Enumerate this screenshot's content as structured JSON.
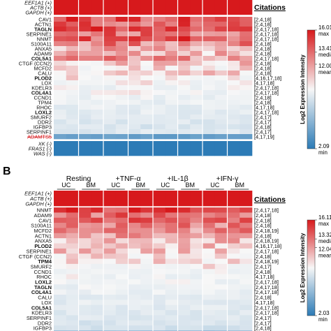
{
  "chart_data": [
    {
      "type": "heatmap",
      "panel_label": "",
      "column_groups": [],
      "column_subgroups": [],
      "column_count": 16,
      "control_rows": {
        "top": [
          {
            "label": "EEF1A1 (+)",
            "level": "high"
          },
          {
            "label": "ACTB (+)",
            "level": "high"
          },
          {
            "label": "GAPDH (+)",
            "level": "high"
          }
        ],
        "bottom": [
          {
            "label": "XK (-)",
            "level": "low"
          },
          {
            "label": "FRAS1 (-)",
            "level": "low"
          },
          {
            "label": "WAS (-)",
            "level": "low"
          }
        ]
      },
      "rows": [
        {
          "gene": "CAV1",
          "bold": false,
          "struck": false,
          "citation": "[2,4,18]",
          "value": 14.9
        },
        {
          "gene": "ACTN1",
          "bold": false,
          "struck": false,
          "citation": "[2,4,18]",
          "value": 14.7
        },
        {
          "gene": "TAGLN",
          "bold": true,
          "struck": false,
          "citation": "[2,4,17,18]",
          "value": 14.9
        },
        {
          "gene": "SERPINE1",
          "bold": false,
          "struck": false,
          "citation": "[2,4,17,18]",
          "value": 14.6
        },
        {
          "gene": "NNMT",
          "bold": false,
          "struck": false,
          "citation": "[2,4,17,18]",
          "value": 14.8
        },
        {
          "gene": "S100A11",
          "bold": false,
          "struck": false,
          "citation": "[2,4,18]",
          "value": 14.4
        },
        {
          "gene": "ANXA5",
          "bold": false,
          "struck": false,
          "citation": "[2,4,18]",
          "value": 14.1
        },
        {
          "gene": "ADAM9",
          "bold": false,
          "struck": false,
          "citation": "[2,4,18]",
          "value": 13.9
        },
        {
          "gene": "COL5A1",
          "bold": true,
          "struck": false,
          "citation": "[2,4,17,18]",
          "value": 14.3
        },
        {
          "gene": "CTGF (CCN2)",
          "bold": false,
          "struck": false,
          "citation": "[2,4,18]",
          "value": 13.8
        },
        {
          "gene": "MCFD2",
          "bold": false,
          "struck": false,
          "citation": "[2,4,18]",
          "value": 13.5
        },
        {
          "gene": "CALU",
          "bold": false,
          "struck": false,
          "citation": "[2,4,18]",
          "value": 13.6
        },
        {
          "gene": "PLOD2",
          "bold": true,
          "struck": false,
          "citation": "[4,16,17,18]",
          "value": 13.4
        },
        {
          "gene": "LOX",
          "bold": false,
          "struck": false,
          "citation": "[4,17,18]",
          "value": 13.2
        },
        {
          "gene": "KDELR3",
          "bold": false,
          "struck": false,
          "citation": "[2,4,17,18]",
          "value": 13.0
        },
        {
          "gene": "COL4A1",
          "bold": true,
          "struck": false,
          "citation": "[2,4,17,18]",
          "value": 13.1
        },
        {
          "gene": "CCND1",
          "bold": false,
          "struck": false,
          "citation": "[2,4,18]",
          "value": 12.9
        },
        {
          "gene": "TPM4",
          "bold": false,
          "struck": false,
          "citation": "[2,4,18]",
          "value": 12.8
        },
        {
          "gene": "RHOC",
          "bold": false,
          "struck": false,
          "citation": "[4,17,18]",
          "value": 12.6
        },
        {
          "gene": "LOXL2",
          "bold": true,
          "struck": false,
          "citation": "[2,4,17,18]",
          "value": 12.5
        },
        {
          "gene": "SMURF2",
          "bold": false,
          "struck": false,
          "citation": "[2,4,17]",
          "value": 12.3
        },
        {
          "gene": "DDR2",
          "bold": false,
          "struck": false,
          "citation": "[2,4,17]",
          "value": 12.1
        },
        {
          "gene": "IGFBP3",
          "bold": false,
          "struck": false,
          "citation": "[2,4,18]",
          "value": 11.9
        },
        {
          "gene": "SERPINF1",
          "bold": false,
          "struck": false,
          "citation": "[2,4,17]",
          "value": 12.2
        },
        {
          "gene": "ADAMTS5",
          "bold": false,
          "struck": true,
          "citation": "[4,17,19]",
          "value": 6.0
        }
      ],
      "citations_header": "Citations",
      "colorbar": {
        "title": "Log2 Expression Intensity",
        "max": 16.01,
        "max_label": "max",
        "median": 13.41,
        "median_label": "median",
        "mean": 12.0,
        "mean_label": "mean",
        "min": 2.09,
        "min_label": "min",
        "colors": {
          "high": "#d7191c",
          "mid": "#f7f7f7",
          "low": "#2c7bb6"
        }
      }
    },
    {
      "type": "heatmap",
      "panel_label": "B",
      "column_groups": [
        "Resting",
        "+TNF-α",
        "+IL-1β",
        "+IFN-γ"
      ],
      "column_subgroups": [
        "UC",
        "BM",
        "UC",
        "BM",
        "UC",
        "BM",
        "UC",
        "BM"
      ],
      "column_count": 16,
      "control_rows": {
        "top": [
          {
            "label": "EEF1A1 (+)",
            "level": "high"
          },
          {
            "label": "ACTB (+)",
            "level": "high"
          },
          {
            "label": "GAPDH (+)",
            "level": "high"
          }
        ],
        "bottom": []
      },
      "rows": [
        {
          "gene": "NNMT",
          "bold": false,
          "struck": false,
          "citation": "[2,4,17,18]",
          "value": 15.0
        },
        {
          "gene": "ADAM9",
          "bold": false,
          "struck": false,
          "citation": "[2,4,18]",
          "value": 14.6
        },
        {
          "gene": "CAV1",
          "bold": false,
          "struck": false,
          "citation": "[2,4,18]",
          "value": 14.9
        },
        {
          "gene": "S100A11",
          "bold": false,
          "struck": false,
          "citation": "[2,4,18]",
          "value": 14.5
        },
        {
          "gene": "MCFD2",
          "bold": false,
          "struck": false,
          "citation": "[2,4,18,19]",
          "value": 14.3
        },
        {
          "gene": "ACTN1",
          "bold": false,
          "struck": false,
          "citation": "[2,4,18]",
          "value": 14.1
        },
        {
          "gene": "ANXA5",
          "bold": false,
          "struck": false,
          "citation": "[2,4,18,19]",
          "value": 13.9
        },
        {
          "gene": "PLOD2",
          "bold": true,
          "struck": false,
          "citation": "[4,16,17,18]",
          "value": 13.8
        },
        {
          "gene": "SERPINE1",
          "bold": false,
          "struck": false,
          "citation": "[2,4,17,18]",
          "value": 13.7
        },
        {
          "gene": "CTGF (CCN2)",
          "bold": false,
          "struck": false,
          "citation": "[2,4,18]",
          "value": 13.6
        },
        {
          "gene": "TPM4",
          "bold": true,
          "struck": false,
          "citation": "[2,4,18,19]",
          "value": 13.5
        },
        {
          "gene": "SMURF2",
          "bold": false,
          "struck": false,
          "citation": "[2,4,17]",
          "value": 13.3
        },
        {
          "gene": "CCND1",
          "bold": false,
          "struck": false,
          "citation": "[2,4,18]",
          "value": 13.2
        },
        {
          "gene": "RHOC",
          "bold": false,
          "struck": false,
          "citation": "[4,17,18]",
          "value": 13.0
        },
        {
          "gene": "LOXL2",
          "bold": true,
          "struck": false,
          "citation": "[2,4,17,18]",
          "value": 12.9
        },
        {
          "gene": "TAGLN",
          "bold": true,
          "struck": false,
          "citation": "[2,4,17,18]",
          "value": 12.8
        },
        {
          "gene": "COL4A1",
          "bold": true,
          "struck": false,
          "citation": "[2,4,17,18]",
          "value": 12.7
        },
        {
          "gene": "CALU",
          "bold": false,
          "struck": false,
          "citation": "[2,4,18]",
          "value": 12.5
        },
        {
          "gene": "LOX",
          "bold": false,
          "struck": false,
          "citation": "[4,17,18]",
          "value": 12.4
        },
        {
          "gene": "COL5A1",
          "bold": true,
          "struck": false,
          "citation": "[2,4,17,18]",
          "value": 12.3
        },
        {
          "gene": "KDELR3",
          "bold": false,
          "struck": false,
          "citation": "[2,4,17,18]",
          "value": 12.2
        },
        {
          "gene": "SERPINF1",
          "bold": false,
          "struck": false,
          "citation": "[2,4,17]",
          "value": 12.0
        },
        {
          "gene": "DDR2",
          "bold": false,
          "struck": false,
          "citation": "[2,4,17]",
          "value": 11.8
        },
        {
          "gene": "IGFBP3",
          "bold": false,
          "struck": false,
          "citation": "[2,4,18]",
          "value": 11.4
        },
        {
          "gene": "ADAMTS5",
          "bold": false,
          "struck": true,
          "citation": "[4,17,19]",
          "value": 6.5
        }
      ],
      "citations_header": "Citations",
      "colorbar": {
        "title": "Log2 Expression Intensity",
        "max": 16.11,
        "max_label": "max",
        "median": 13.32,
        "median_label": "median",
        "mean": 12.04,
        "mean_label": "mean",
        "min": 2.03,
        "min_label": "min",
        "colors": {
          "high": "#d7191c",
          "mid": "#f7f7f7",
          "low": "#2c7bb6"
        }
      }
    }
  ]
}
